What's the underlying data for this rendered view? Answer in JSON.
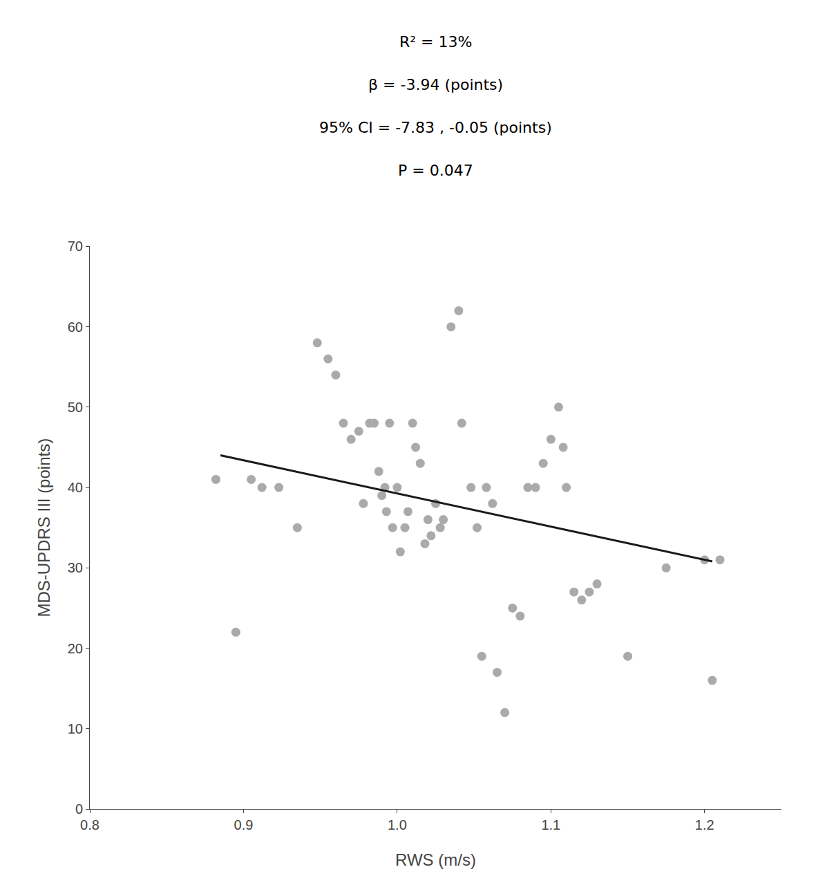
{
  "chart_data": {
    "type": "scatter",
    "xlabel": "RWS (m/s)",
    "ylabel": "MDS-UPDRS III (points)",
    "annotations": [
      "R² = 13%",
      "β = -3.94 (points)",
      "95% CI = -7.83 , -0.05 (points)",
      "P = 0.047"
    ],
    "xlim": [
      0.8,
      1.25
    ],
    "ylim": [
      0,
      70
    ],
    "xticks": [
      0.8,
      0.9,
      {
        "value": 1.0,
        "label": "1.0"
      },
      1.1,
      1.2
    ],
    "yticks": [
      0,
      10,
      20,
      30,
      40,
      50,
      60,
      70
    ],
    "grid": false,
    "series": [
      {
        "type": "scatter",
        "marker": "circle",
        "color": "#aaaaaa",
        "x": [
          0.882,
          0.895,
          0.905,
          0.912,
          0.923,
          0.935,
          0.948,
          0.955,
          0.96,
          0.965,
          0.97,
          0.975,
          0.978,
          0.982,
          0.985,
          0.988,
          0.99,
          0.992,
          0.993,
          0.995,
          0.997,
          1.0,
          1.002,
          1.005,
          1.007,
          1.01,
          1.012,
          1.015,
          1.018,
          1.02,
          1.022,
          1.025,
          1.028,
          1.03,
          1.035,
          1.04,
          1.042,
          1.048,
          1.052,
          1.055,
          1.058,
          1.062,
          1.065,
          1.07,
          1.075,
          1.08,
          1.085,
          1.09,
          1.095,
          1.1,
          1.105,
          1.108,
          1.11,
          1.115,
          1.12,
          1.125,
          1.13,
          1.15,
          1.175,
          1.2,
          1.205,
          1.21
        ],
        "values": [
          41,
          22,
          41,
          40,
          40,
          35,
          58,
          56,
          54,
          48,
          46,
          47,
          38,
          48,
          48,
          42,
          39,
          40,
          37,
          48,
          35,
          40,
          32,
          35,
          37,
          48,
          45,
          43,
          33,
          36,
          34,
          38,
          35,
          36,
          60,
          62,
          48,
          40,
          35,
          19,
          40,
          38,
          17,
          12,
          25,
          24,
          40,
          40,
          43,
          46,
          50,
          45,
          40,
          27,
          26,
          27,
          28,
          19,
          30,
          31,
          16,
          31
        ]
      },
      {
        "type": "line",
        "line_style": "solid",
        "color": "#1a1a1a",
        "x": [
          0.885,
          1.205
        ],
        "values": [
          44.0,
          30.8
        ]
      }
    ]
  }
}
